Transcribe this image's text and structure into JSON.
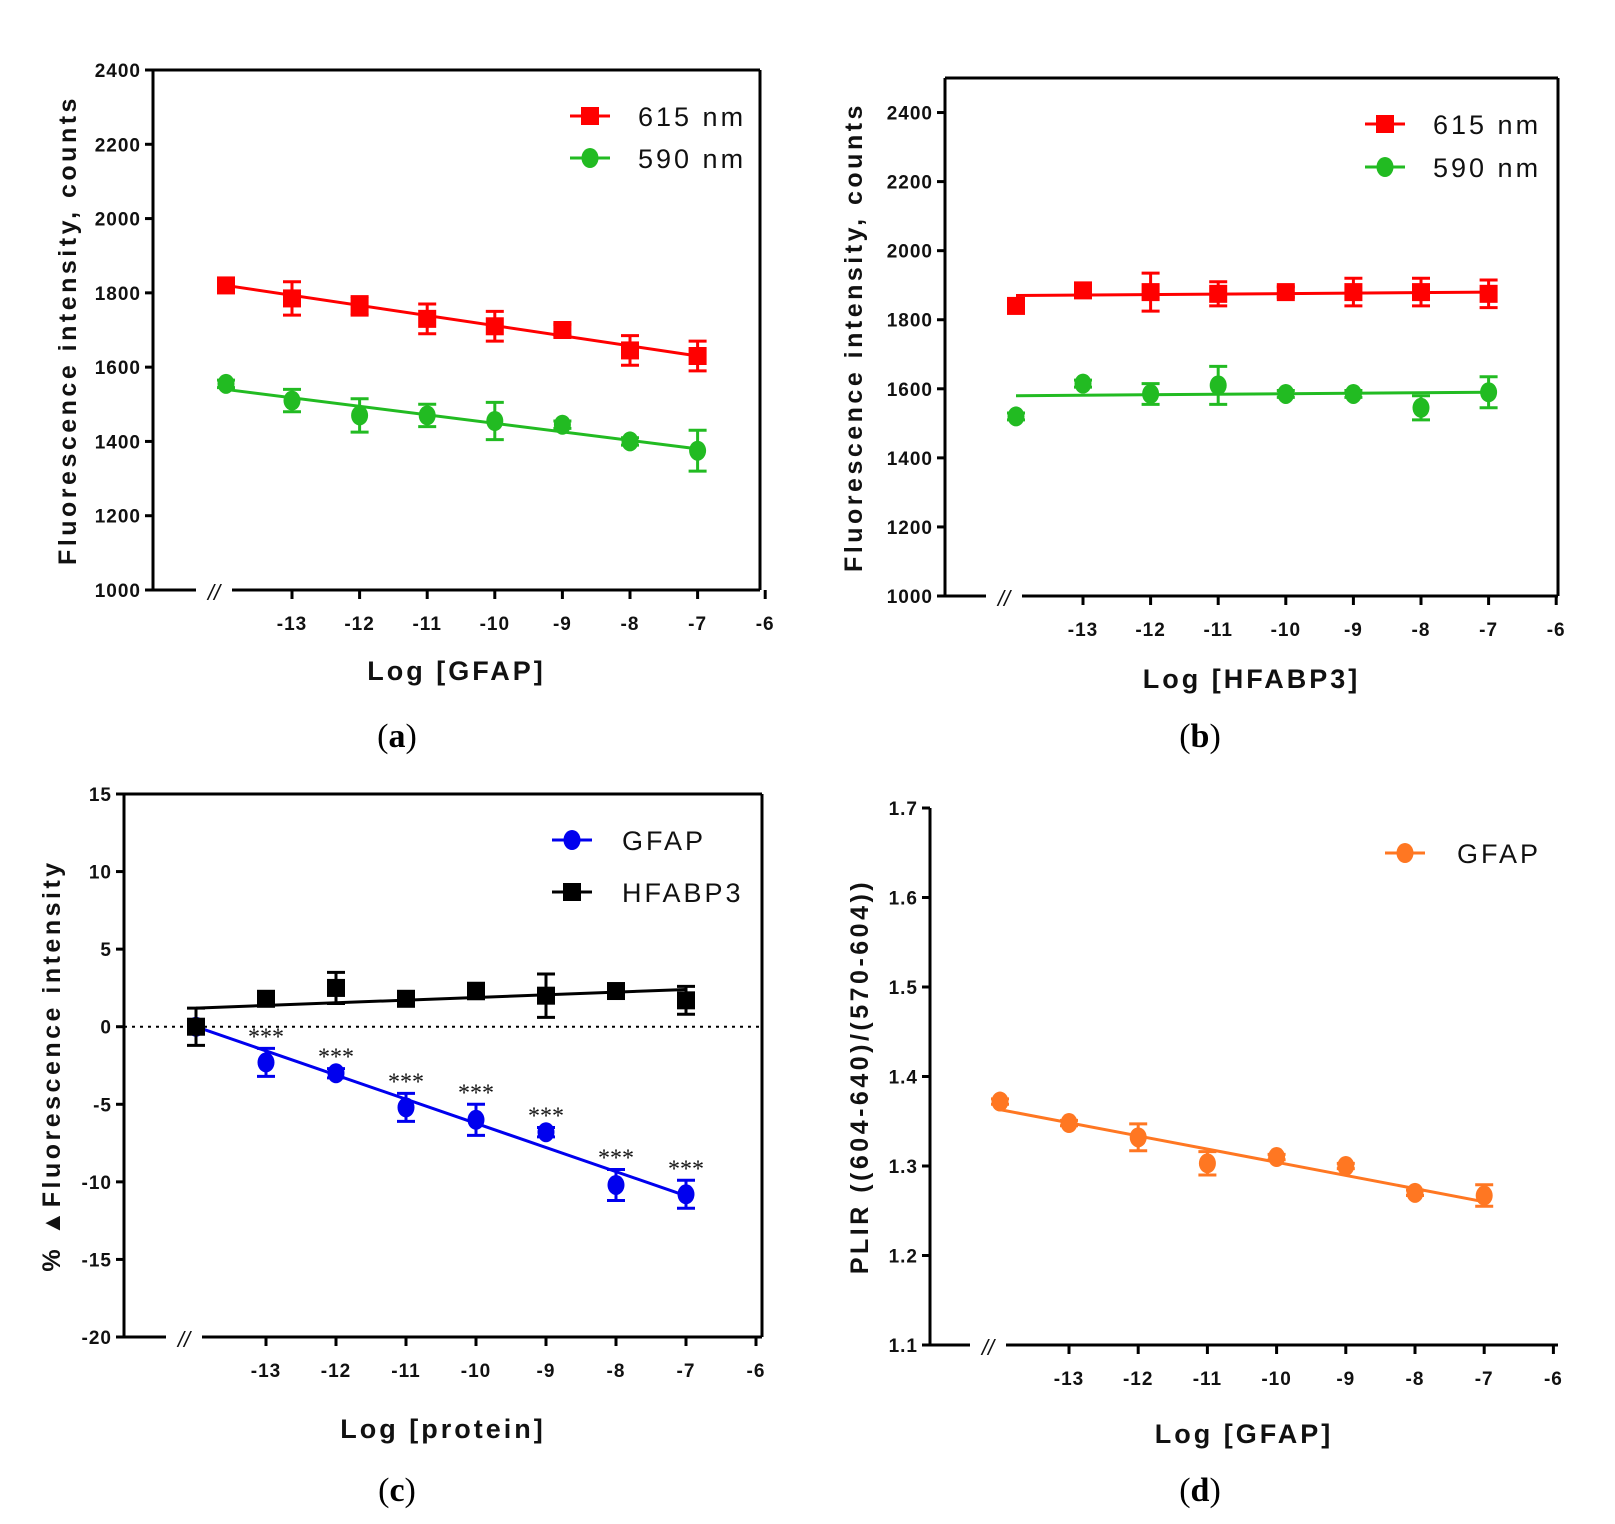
{
  "figure": {
    "captions": [
      "a",
      "b",
      "c",
      "d"
    ],
    "axis_break_symbol": "//"
  },
  "chart_data": [
    {
      "panel": "a",
      "type": "scatter",
      "xlabel": "Log [GFAP]",
      "ylabel": "Fluorescence intensity, counts",
      "x_ticks": [
        -13,
        -12,
        -11,
        -10,
        -9,
        -8,
        -7,
        -6
      ],
      "y_ticks": [
        1000,
        1200,
        1400,
        1600,
        1800,
        2000,
        2200,
        2400
      ],
      "xlim": [
        -15,
        -6
      ],
      "ylim": [
        1000,
        2400
      ],
      "series": [
        {
          "name": "615 nm",
          "color": "#ff0000",
          "marker": "square",
          "x": [
            -14,
            -13,
            -12,
            -11,
            -10,
            -9,
            -8,
            -7
          ],
          "values": [
            1820,
            1785,
            1765,
            1730,
            1710,
            1700,
            1645,
            1630
          ],
          "errors": [
            10,
            45,
            25,
            40,
            40,
            15,
            40,
            40
          ],
          "fit": [
            1820,
            1630
          ]
        },
        {
          "name": "590 nm",
          "color": "#22bb22",
          "marker": "circle",
          "x": [
            -14,
            -13,
            -12,
            -11,
            -10,
            -9,
            -8,
            -7
          ],
          "values": [
            1555,
            1510,
            1470,
            1470,
            1455,
            1445,
            1400,
            1375
          ],
          "errors": [
            10,
            30,
            45,
            30,
            50,
            10,
            10,
            55
          ],
          "fit": [
            1540,
            1380
          ]
        }
      ]
    },
    {
      "panel": "b",
      "type": "scatter",
      "xlabel": "Log [HFABP3]",
      "ylabel": "Fluorescence intensity, counts",
      "x_ticks": [
        -13,
        -12,
        -11,
        -10,
        -9,
        -8,
        -7,
        -6
      ],
      "y_ticks": [
        1000,
        1200,
        1400,
        1600,
        1800,
        2000,
        2200,
        2400
      ],
      "xlim": [
        -15,
        -6
      ],
      "ylim": [
        1000,
        2500
      ],
      "series": [
        {
          "name": "615 nm",
          "color": "#ff0000",
          "marker": "square",
          "x": [
            -14,
            -13,
            -12,
            -11,
            -10,
            -9,
            -8,
            -7
          ],
          "values": [
            1840,
            1885,
            1880,
            1875,
            1880,
            1880,
            1880,
            1875
          ],
          "errors": [
            10,
            15,
            55,
            35,
            15,
            40,
            40,
            40
          ],
          "fit": [
            1870,
            1880
          ]
        },
        {
          "name": "590 nm",
          "color": "#22bb22",
          "marker": "circle",
          "x": [
            -14,
            -13,
            -12,
            -11,
            -10,
            -9,
            -8,
            -7
          ],
          "values": [
            1520,
            1615,
            1585,
            1610,
            1585,
            1585,
            1545,
            1590
          ],
          "errors": [
            10,
            10,
            30,
            55,
            10,
            10,
            35,
            45
          ],
          "fit": [
            1580,
            1590
          ]
        }
      ]
    },
    {
      "panel": "c",
      "type": "scatter",
      "xlabel": "Log [protein]",
      "ylabel": "% ▲Fluorescence intensity",
      "x_ticks": [
        -13,
        -12,
        -11,
        -10,
        -9,
        -8,
        -7,
        -6
      ],
      "y_ticks": [
        -20,
        -15,
        -10,
        -5,
        0,
        5,
        10,
        15
      ],
      "xlim": [
        -15,
        -6
      ],
      "ylim": [
        -20,
        15
      ],
      "zero_line": "dotted",
      "significance_label": "***",
      "series": [
        {
          "name": "GFAP",
          "color": "#0000ee",
          "marker": "circle",
          "x": [
            -14,
            -13,
            -12,
            -11,
            -10,
            -9,
            -8,
            -7
          ],
          "values": [
            0,
            -2.3,
            -3.0,
            -5.2,
            -6.0,
            -6.8,
            -10.2,
            -10.8
          ],
          "errors": [
            0.3,
            0.9,
            0.3,
            0.9,
            1.0,
            0.3,
            1.0,
            0.9
          ],
          "significant": [
            false,
            true,
            true,
            true,
            true,
            true,
            true,
            true
          ],
          "fit": [
            0,
            -10.9
          ]
        },
        {
          "name": "HFABP3",
          "color": "#000000",
          "marker": "square",
          "x": [
            -14,
            -13,
            -12,
            -11,
            -10,
            -9,
            -8,
            -7
          ],
          "values": [
            0,
            1.8,
            2.5,
            1.8,
            2.3,
            2.0,
            2.3,
            1.7
          ],
          "errors": [
            1.2,
            0.4,
            1.0,
            0.3,
            0.5,
            1.4,
            0.3,
            0.9
          ],
          "fit": [
            1.2,
            2.4
          ]
        }
      ]
    },
    {
      "panel": "d",
      "type": "scatter",
      "xlabel": "Log [GFAP]",
      "ylabel": "PLIR ((604-640)/(570-604))",
      "x_ticks": [
        -13,
        -12,
        -11,
        -10,
        -9,
        -8,
        -7,
        -6
      ],
      "y_ticks": [
        "1.1",
        "1.2",
        "1.3",
        "1.4",
        "1.5",
        "1.6",
        "1.7"
      ],
      "xlim": [
        -15,
        -6
      ],
      "ylim": [
        1.1,
        1.7
      ],
      "series": [
        {
          "name": "GFAP",
          "color": "#ff7722",
          "marker": "circle",
          "x": [
            -14,
            -13,
            -12,
            -11,
            -10,
            -9,
            -8,
            -7
          ],
          "values": [
            1.372,
            1.348,
            1.332,
            1.303,
            1.31,
            1.3,
            1.27,
            1.267
          ],
          "errors": [
            0.003,
            0.003,
            0.015,
            0.013,
            0.003,
            0.003,
            0.003,
            0.012
          ],
          "fit": [
            1.363,
            1.26
          ]
        }
      ]
    }
  ]
}
